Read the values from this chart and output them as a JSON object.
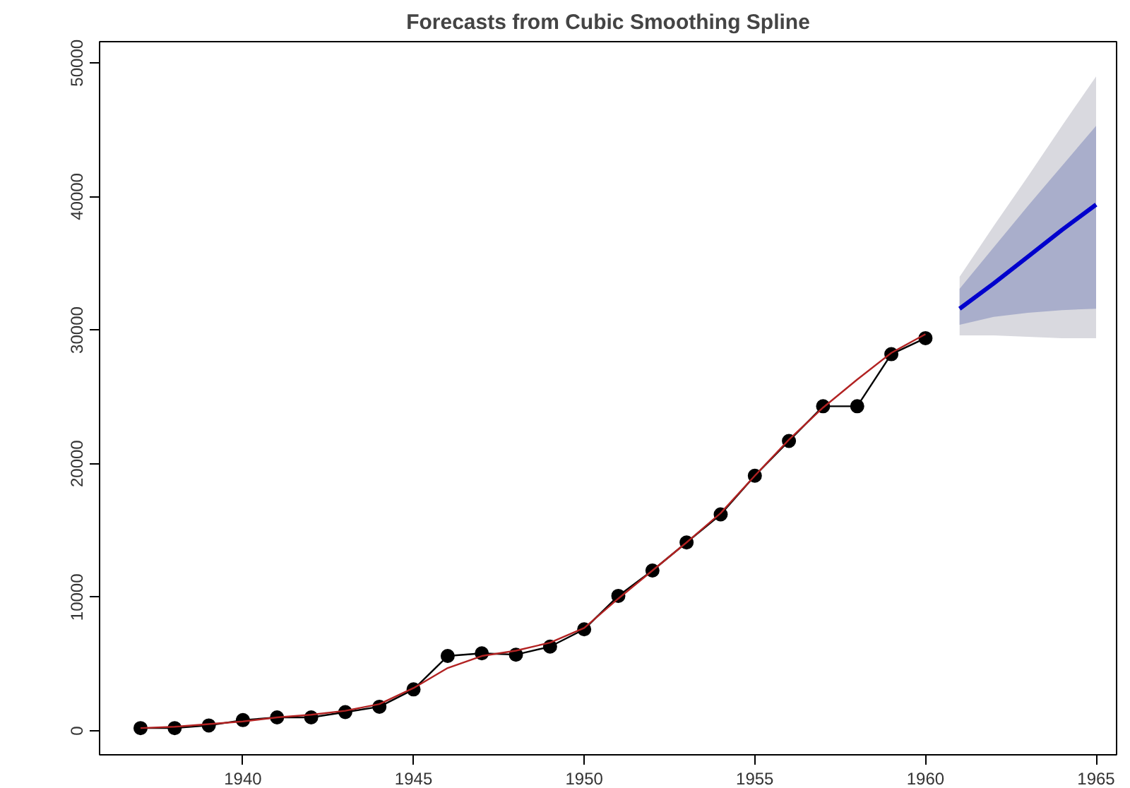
{
  "chart_data": {
    "type": "line",
    "title": "Forecasts from Cubic Smoothing Spline",
    "xlim": [
      1935.8,
      1965.6
    ],
    "ylim": [
      -1800,
      51600
    ],
    "xticks": [
      1940,
      1945,
      1950,
      1955,
      1960,
      1965
    ],
    "yticks": [
      0,
      10000,
      20000,
      30000,
      40000,
      50000
    ],
    "grid": false,
    "series": [
      {
        "color": "#d9d9df",
        "x": [
          1961,
          1962,
          1963,
          1964,
          1965
        ],
        "values": [
          null,
          null,
          null,
          null,
          null
        ],
        "lower": [
          29600,
          29600,
          29500,
          29400,
          29400
        ],
        "upper": [
          34000,
          37800,
          41500,
          45300,
          49000
        ],
        "marker": "none"
      },
      {
        "color": "#a9aecb",
        "x": [
          1961,
          1962,
          1963,
          1964,
          1965
        ],
        "values": [
          null,
          null,
          null,
          null,
          null
        ],
        "lower": [
          30400,
          31000,
          31300,
          31500,
          31600
        ],
        "upper": [
          33100,
          36200,
          39300,
          42300,
          45300
        ],
        "marker": "none"
      },
      {
        "color": "#0000cd",
        "x": [
          1961,
          1962,
          1963,
          1964,
          1965
        ],
        "values": [
          31600,
          33500,
          35500,
          37500,
          39400
        ],
        "marker": "none"
      },
      {
        "color": "#000000",
        "x": [
          1937,
          1938,
          1939,
          1940,
          1941,
          1942,
          1943,
          1944,
          1945,
          1946,
          1947,
          1948,
          1949,
          1950,
          1951,
          1952,
          1953,
          1954,
          1955,
          1956,
          1957,
          1958,
          1959,
          1960
        ],
        "values": [
          200,
          200,
          400,
          800,
          1000,
          1000,
          1400,
          1800,
          3100,
          5600,
          5800,
          5700,
          6300,
          7600,
          10100,
          12000,
          14100,
          16200,
          19100,
          21700,
          24300,
          24300,
          28200,
          29400
        ],
        "marker": "circle"
      },
      {
        "color": "#b22222",
        "x": [
          1937,
          1938,
          1939,
          1940,
          1941,
          1942,
          1943,
          1944,
          1945,
          1946,
          1947,
          1948,
          1949,
          1950,
          1951,
          1952,
          1953,
          1954,
          1955,
          1956,
          1957,
          1958,
          1959,
          1960
        ],
        "values": [
          200,
          300,
          500,
          700,
          1000,
          1200,
          1500,
          2000,
          3200,
          4700,
          5600,
          6000,
          6600,
          7700,
          9900,
          12000,
          14100,
          16300,
          19100,
          21800,
          24200,
          26300,
          28300,
          29700
        ],
        "marker": "none"
      }
    ]
  }
}
